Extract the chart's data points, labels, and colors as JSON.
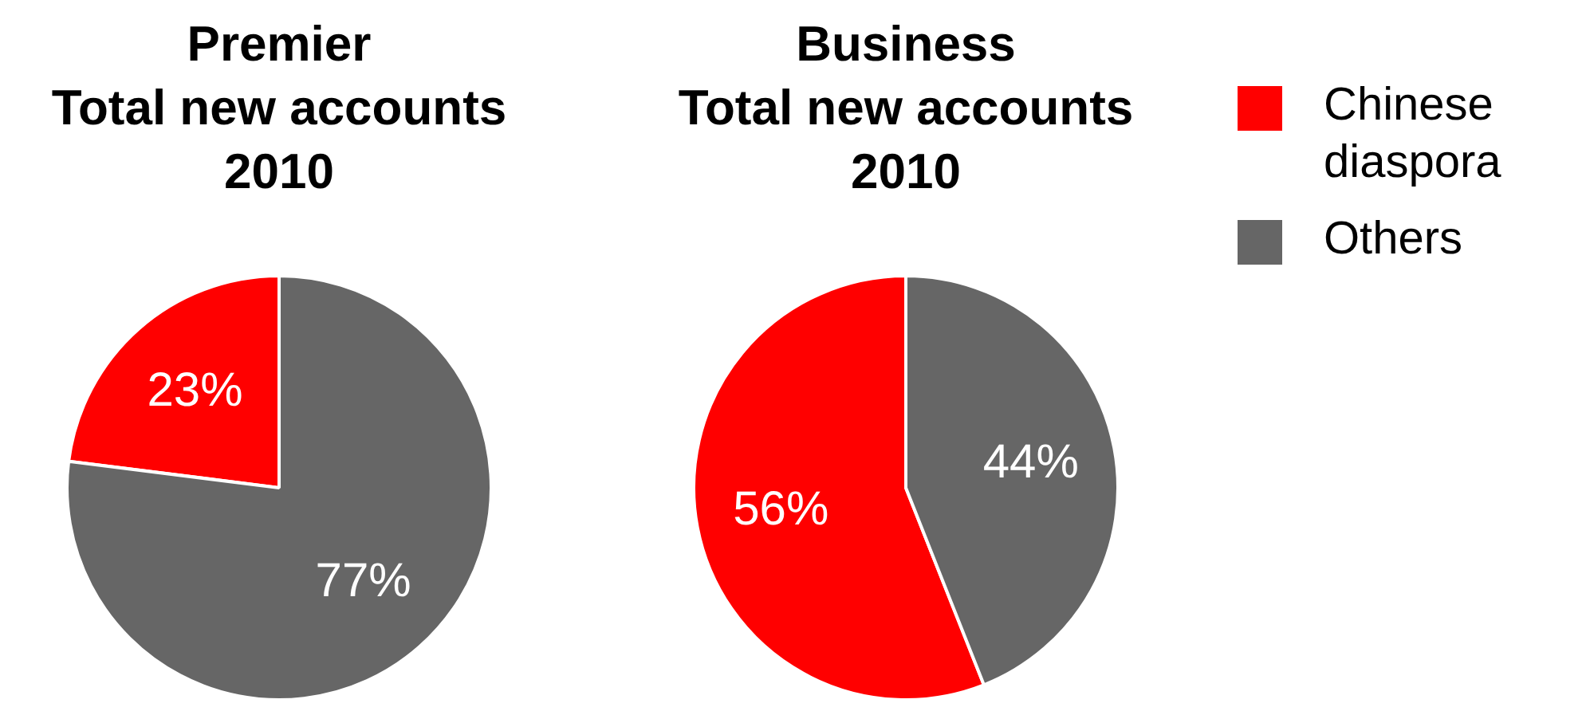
{
  "chart_data": [
    {
      "type": "pie",
      "title": "Premier",
      "subtitle": "Total new accounts 2010",
      "categories": [
        null,
        null
      ],
      "values": [
        23,
        77
      ],
      "colors": [
        "#ff0000",
        "#666666"
      ],
      "value_labels": [
        "23%",
        "77%"
      ],
      "legend": false
    },
    {
      "type": "pie",
      "title": "Business",
      "subtitle": "Total new accounts 2010",
      "categories": [
        "Chinese diaspora",
        "Others"
      ],
      "values": [
        56,
        44
      ],
      "colors": [
        "#ff0000",
        "#666666"
      ],
      "value_labels": [
        "56%",
        "44%"
      ],
      "legend": "right"
    }
  ]
}
